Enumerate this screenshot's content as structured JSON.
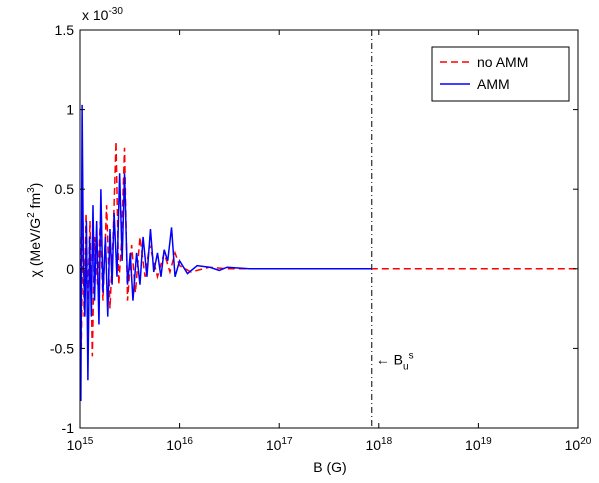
{
  "chart_data": {
    "type": "line",
    "multiplier": "x 10^-30",
    "xlabel": "B (G)",
    "ylabel": "χ  (MeV/G^2 fm^3)",
    "xscale": "log",
    "xlim": [
      1000000000000000.0,
      1e+20
    ],
    "xticks": [
      {
        "value": 1000000000000000.0,
        "label": "10^15"
      },
      {
        "value": 1e+16,
        "label": "10^16"
      },
      {
        "value": 1e+17,
        "label": "10^17"
      },
      {
        "value": 1e+18,
        "label": "10^18"
      },
      {
        "value": 1e+19,
        "label": "10^19"
      },
      {
        "value": 1e+20,
        "label": "10^20"
      }
    ],
    "ylim": [
      -1,
      1.5
    ],
    "yticks": [
      -1,
      -0.5,
      0,
      0.5,
      1,
      1.5
    ],
    "legend": "upper right",
    "series": [
      {
        "name": "no AMM",
        "color": "#ff0000",
        "dash": "dashed",
        "x": [
          1000000000000000.0,
          1030000000000000.0,
          1070000000000000.0,
          1100000000000000.0,
          1150000000000000.0,
          1200000000000000.0,
          1260000000000000.0,
          1330000000000000.0,
          1400000000000000.0,
          1500000000000000.0,
          1600000000000000.0,
          1700000000000000.0,
          1850000000000000.0,
          2000000000000000.0,
          2150000000000000.0,
          2300000000000000.0,
          2450000000000000.0,
          2600000000000000.0,
          2800000000000000.0,
          3000000000000000.0,
          3300000000000000.0,
          3600000000000000.0,
          4000000000000000.0,
          4500000000000000.0,
          5000000000000000.0,
          6000000000000000.0,
          7000000000000000.0,
          8000000000000000.0,
          9000000000000000.0,
          1e+16,
          1.3e+16,
          2e+16,
          3e+16,
          1e+17,
          1e+18,
          1e+20
        ],
        "values": [
          0.2,
          -0.5,
          0.3,
          -0.3,
          0.35,
          -0.2,
          0.3,
          -0.55,
          0.2,
          -0.1,
          0.3,
          -0.2,
          0.4,
          -0.25,
          0.2,
          0.8,
          -0.1,
          0.15,
          0.76,
          -0.2,
          0.15,
          -0.15,
          0.2,
          -0.05,
          0.15,
          -0.05,
          0.1,
          -0.02,
          0.1,
          0.02,
          -0.02,
          0.01,
          0,
          0,
          0,
          0
        ]
      },
      {
        "name": "AMM",
        "color": "#0000ff",
        "dash": "solid",
        "x": [
          1000000000000000.0,
          1020000000000000.0,
          1050000000000000.0,
          1080000000000000.0,
          1120000000000000.0,
          1160000000000000.0,
          1200000000000000.0,
          1250000000000000.0,
          1300000000000000.0,
          1350000000000000.0,
          1400000000000000.0,
          1470000000000000.0,
          1550000000000000.0,
          1620000000000000.0,
          1700000000000000.0,
          1800000000000000.0,
          1900000000000000.0,
          2000000000000000.0,
          2100000000000000.0,
          2200000000000000.0,
          2350000000000000.0,
          2500000000000000.0,
          2650000000000000.0,
          2800000000000000.0,
          3000000000000000.0,
          3200000000000000.0,
          3400000000000000.0,
          3700000000000000.0,
          4000000000000000.0,
          4300000000000000.0,
          4700000000000000.0,
          5100000000000000.0,
          5500000000000000.0,
          6000000000000000.0,
          6500000000000000.0,
          7000000000000000.0,
          7600000000000000.0,
          8300000000000000.0,
          9000000000000000.0,
          1e+16,
          1.2e+16,
          1.5e+16,
          2e+16,
          2.5e+16,
          3e+16,
          5e+16,
          1e+17,
          3e+17,
          8.5e+17
        ],
        "values": [
          0,
          -0.83,
          1.03,
          0.1,
          -0.3,
          0.3,
          -0.7,
          0.2,
          -0.3,
          0.4,
          -0.2,
          0.3,
          -0.35,
          0.5,
          -0.15,
          0.2,
          -0.3,
          0.25,
          -0.1,
          0.35,
          -0.05,
          0.6,
          0.05,
          0.6,
          -0.1,
          0.1,
          -0.2,
          0.1,
          -0.1,
          0.2,
          -0.05,
          0.25,
          -0.02,
          0.1,
          -0.05,
          0.12,
          0.05,
          0.26,
          -0.05,
          0.05,
          -0.03,
          0.02,
          0.01,
          -0.01,
          0.01,
          0,
          0,
          0,
          0
        ]
      }
    ],
    "annotations": [
      {
        "x": 8.5e+17,
        "text": "← B_u^s"
      }
    ]
  }
}
